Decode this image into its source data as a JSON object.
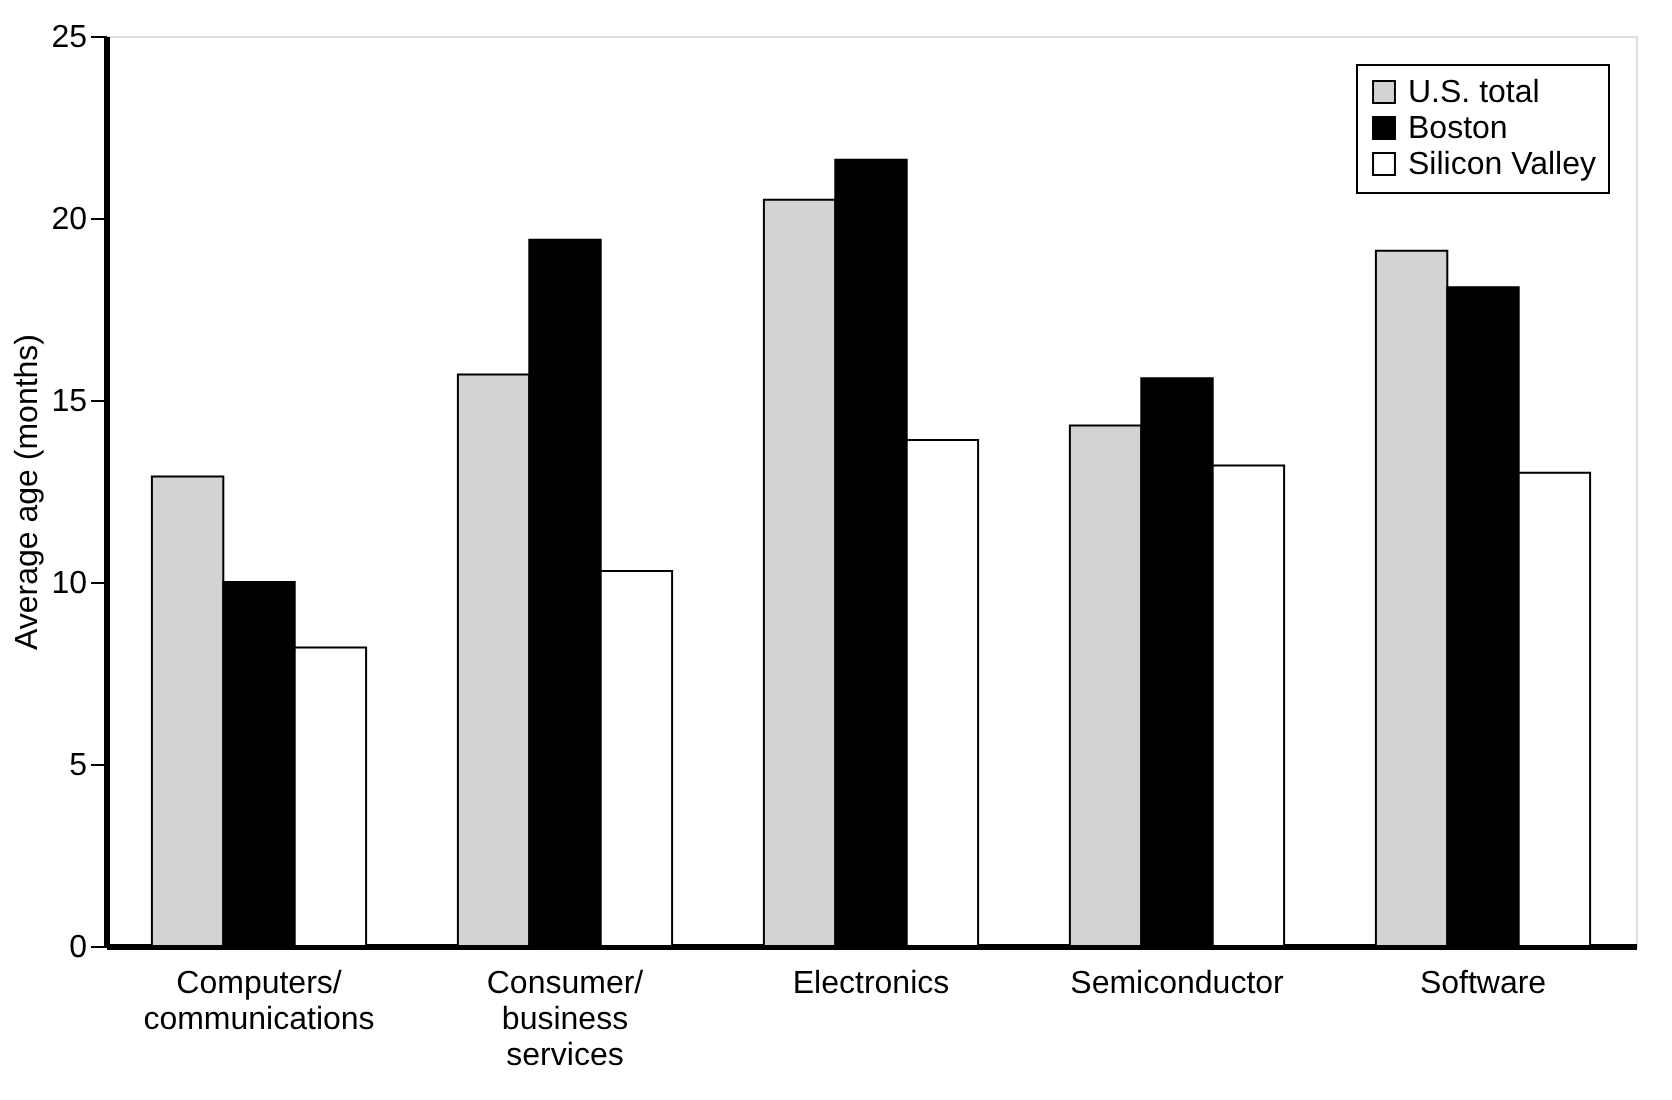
{
  "chart_data": {
    "type": "bar",
    "ylabel": "Average age (months)",
    "categories": [
      "Computers/ communications",
      "Consumer/ business services",
      "Electronics",
      "Semiconductor",
      "Software"
    ],
    "series": [
      {
        "name": "U.S. total",
        "color": "#d3d3d3",
        "values": [
          12.9,
          15.7,
          20.5,
          14.3,
          19.1
        ]
      },
      {
        "name": "Boston",
        "color": "#000000",
        "values": [
          10.0,
          19.4,
          21.6,
          15.6,
          18.1
        ]
      },
      {
        "name": "Silicon Valley",
        "color": "#ffffff",
        "values": [
          8.2,
          10.3,
          13.9,
          13.2,
          13.0
        ]
      }
    ],
    "ylim": [
      0,
      25
    ],
    "yticks": [
      0,
      5,
      10,
      15,
      20,
      25
    ],
    "grid": false,
    "legend": "top right"
  }
}
